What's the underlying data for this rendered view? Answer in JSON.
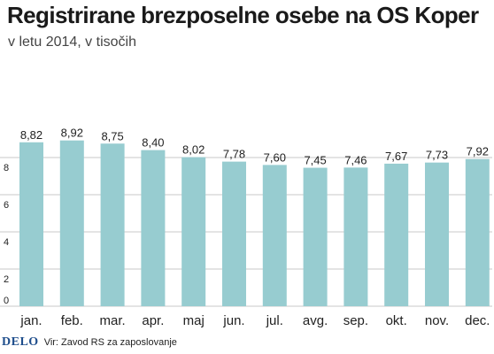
{
  "header": {
    "title": "Registrirane brezposelne osebe na OS Koper",
    "subtitle": "v letu 2014, v tisočih"
  },
  "footer": {
    "logo": "DELO",
    "source": "Vir: Zavod RS za zaposlovanje"
  },
  "colors": {
    "bar": "#97ccd0",
    "grid": "#c8c8c8",
    "text": "#222222"
  },
  "chart_data": {
    "type": "bar",
    "title": "Registrirane brezposelne osebe na OS Koper",
    "subtitle": "v letu 2014, v tisočih",
    "xlabel": "",
    "ylabel": "",
    "categories": [
      "jan.",
      "feb.",
      "mar.",
      "apr.",
      "maj",
      "jun.",
      "jul.",
      "avg.",
      "sep.",
      "okt.",
      "nov.",
      "dec."
    ],
    "values": [
      8.82,
      8.92,
      8.75,
      8.4,
      8.02,
      7.78,
      7.6,
      7.45,
      7.46,
      7.67,
      7.73,
      7.92
    ],
    "value_labels": [
      "8,82",
      "8,92",
      "8,75",
      "8,40",
      "8,02",
      "7,78",
      "7,60",
      "7,45",
      "7,46",
      "7,67",
      "7,73",
      "7,92"
    ],
    "yticks": [
      0,
      2,
      4,
      6,
      8
    ],
    "ylim": [
      0,
      10
    ],
    "grid": true,
    "legend": "none"
  }
}
